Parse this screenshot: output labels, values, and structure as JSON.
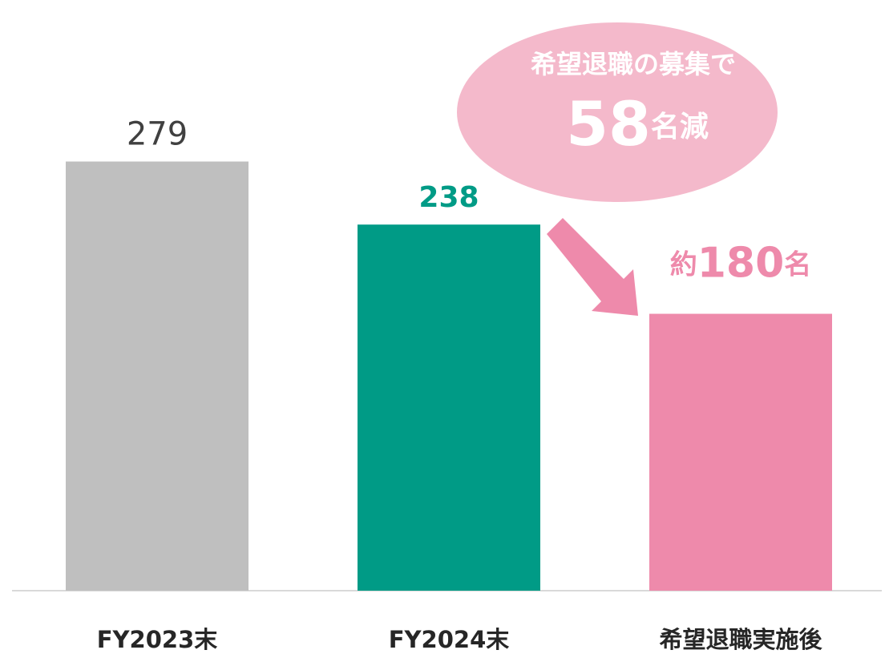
{
  "chart_data": {
    "type": "bar",
    "categories": [
      "FY2023末",
      "FY2024末",
      "希望退職実施後"
    ],
    "values": [
      279,
      238,
      180
    ],
    "value_labels": [
      "279",
      "238",
      "約180名"
    ],
    "colors": [
      "#bfbfbf",
      "#009b86",
      "#ee8aab"
    ],
    "label_colors": [
      "#404040",
      "#009b86",
      "#ee8aab"
    ],
    "ylim": [
      0,
      384
    ],
    "annotation": {
      "text": "希望退職の募集で",
      "amount": "58名減"
    }
  }
}
